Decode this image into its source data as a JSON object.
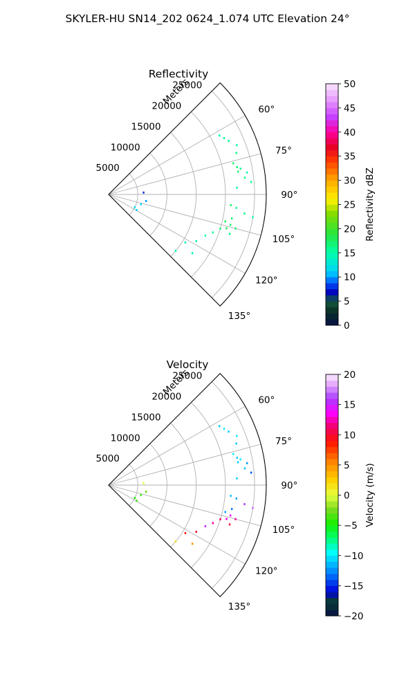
{
  "figure": {
    "title": "SKYLER-HU  SN14_202  0624_1.074 UTC Elevation 24°"
  },
  "chart_data": [
    {
      "type": "scatter",
      "subtype": "polar-sector (radar PPI)",
      "title": "Reflectivity",
      "range_label": "Meters",
      "range_ticks": [
        5000,
        10000,
        15000,
        20000,
        25000
      ],
      "range_tick_labels": [
        "5000",
        "10000",
        "15000",
        "20000",
        "25000"
      ],
      "rlim": [
        0,
        27000
      ],
      "azimuth_range_deg": [
        45,
        135
      ],
      "azimuth_ticks_deg": [
        60,
        75,
        90,
        105,
        120,
        135
      ],
      "azimuth_tick_labels": [
        "60°",
        "75°",
        "90°",
        "105°",
        "120°",
        "135°"
      ],
      "grid": true,
      "colorbar": {
        "label": "Reflectivity dBZ",
        "min": 0,
        "max": 50,
        "ticks": [
          0,
          5,
          10,
          15,
          20,
          25,
          30,
          35,
          40,
          45,
          50
        ],
        "tick_labels": [
          "0",
          "5",
          "10",
          "15",
          "20",
          "25",
          "30",
          "35",
          "40",
          "45",
          "50"
        ],
        "colormap": "pyart_NWSRef-like"
      },
      "points": [
        {
          "az": 62,
          "r": 21500,
          "v": 15
        },
        {
          "az": 64,
          "r": 22000,
          "v": 16
        },
        {
          "az": 66,
          "r": 22500,
          "v": 16
        },
        {
          "az": 69,
          "r": 23500,
          "v": 15
        },
        {
          "az": 72,
          "r": 23000,
          "v": 16
        },
        {
          "az": 76,
          "r": 22000,
          "v": 17
        },
        {
          "az": 78,
          "r": 22500,
          "v": 17
        },
        {
          "az": 79,
          "r": 23000,
          "v": 16
        },
        {
          "az": 80,
          "r": 22500,
          "v": 17
        },
        {
          "az": 81,
          "r": 24000,
          "v": 15
        },
        {
          "az": 83,
          "r": 23500,
          "v": 16
        },
        {
          "az": 85,
          "r": 24500,
          "v": 16
        },
        {
          "az": 87,
          "r": 22000,
          "v": 15
        },
        {
          "az": 95,
          "r": 21000,
          "v": 17
        },
        {
          "az": 96,
          "r": 22000,
          "v": 16
        },
        {
          "az": 98,
          "r": 23500,
          "v": 16
        },
        {
          "az": 99,
          "r": 25000,
          "v": 15
        },
        {
          "az": 101,
          "r": 21500,
          "v": 17
        },
        {
          "az": 103,
          "r": 20500,
          "v": 18
        },
        {
          "az": 104,
          "r": 21500,
          "v": 17
        },
        {
          "az": 105,
          "r": 22500,
          "v": 17
        },
        {
          "az": 106,
          "r": 21000,
          "v": 18
        },
        {
          "az": 107,
          "r": 20000,
          "v": 17
        },
        {
          "az": 108,
          "r": 21800,
          "v": 16
        },
        {
          "az": 110,
          "r": 19000,
          "v": 16
        },
        {
          "az": 113,
          "r": 18000,
          "v": 15
        },
        {
          "az": 118,
          "r": 17000,
          "v": 15
        },
        {
          "az": 122,
          "r": 15500,
          "v": 14
        },
        {
          "az": 125,
          "r": 17500,
          "v": 14
        },
        {
          "az": 130,
          "r": 15000,
          "v": 15
        },
        {
          "az": 87,
          "r": 6000,
          "v": 8
        },
        {
          "az": 100,
          "r": 6500,
          "v": 10
        },
        {
          "az": 107,
          "r": 5800,
          "v": 11
        },
        {
          "az": 116,
          "r": 5000,
          "v": 12
        },
        {
          "az": 119,
          "r": 5500,
          "v": 11
        }
      ]
    },
    {
      "type": "scatter",
      "subtype": "polar-sector (radar PPI)",
      "title": "Velocity",
      "range_label": "Meters",
      "range_ticks": [
        5000,
        10000,
        15000,
        20000,
        25000
      ],
      "range_tick_labels": [
        "5000",
        "10000",
        "15000",
        "20000",
        "25000"
      ],
      "rlim": [
        0,
        27000
      ],
      "azimuth_range_deg": [
        45,
        135
      ],
      "azimuth_ticks_deg": [
        60,
        75,
        90,
        105,
        120,
        135
      ],
      "azimuth_tick_labels": [
        "60°",
        "75°",
        "90°",
        "105°",
        "120°",
        "135°"
      ],
      "grid": true,
      "colorbar": {
        "label": "Velocity (m/s)",
        "min": -20,
        "max": 20,
        "ticks": [
          -20,
          -15,
          -10,
          -5,
          0,
          5,
          10,
          15,
          20
        ],
        "tick_labels": [
          "−20",
          "−15",
          "−10",
          "−5",
          "0",
          "5",
          "10",
          "15",
          "20"
        ],
        "colormap": "pyart_BuDRd18-like"
      },
      "points": [
        {
          "az": 62,
          "r": 21500,
          "v": -11
        },
        {
          "az": 64,
          "r": 22000,
          "v": -10
        },
        {
          "az": 66,
          "r": 22500,
          "v": -11
        },
        {
          "az": 69,
          "r": 23500,
          "v": -10
        },
        {
          "az": 72,
          "r": 23000,
          "v": -11
        },
        {
          "az": 76,
          "r": 22000,
          "v": -10
        },
        {
          "az": 78,
          "r": 22500,
          "v": -11
        },
        {
          "az": 79,
          "r": 23000,
          "v": -10
        },
        {
          "az": 80,
          "r": 22500,
          "v": -11
        },
        {
          "az": 81,
          "r": 24000,
          "v": -12
        },
        {
          "az": 83,
          "r": 23500,
          "v": -11
        },
        {
          "az": 85,
          "r": 24500,
          "v": -14
        },
        {
          "az": 87,
          "r": 22000,
          "v": -11
        },
        {
          "az": 95,
          "r": 21000,
          "v": -11
        },
        {
          "az": 96,
          "r": 22000,
          "v": -12
        },
        {
          "az": 98,
          "r": 23500,
          "v": 16
        },
        {
          "az": 99,
          "r": 25000,
          "v": 17
        },
        {
          "az": 101,
          "r": 21500,
          "v": -13
        },
        {
          "az": 103,
          "r": 20500,
          "v": -12
        },
        {
          "az": 104,
          "r": 21500,
          "v": 14
        },
        {
          "az": 105,
          "r": 22500,
          "v": 12
        },
        {
          "az": 106,
          "r": 21000,
          "v": 13
        },
        {
          "az": 107,
          "r": 20000,
          "v": 11
        },
        {
          "az": 108,
          "r": 21800,
          "v": 10
        },
        {
          "az": 110,
          "r": 19000,
          "v": 12
        },
        {
          "az": 113,
          "r": 18000,
          "v": 15
        },
        {
          "az": 118,
          "r": 17000,
          "v": 10
        },
        {
          "az": 122,
          "r": 15500,
          "v": 9
        },
        {
          "az": 125,
          "r": 17500,
          "v": 5
        },
        {
          "az": 130,
          "r": 15000,
          "v": 2
        },
        {
          "az": 87,
          "r": 6000,
          "v": 0
        },
        {
          "az": 100,
          "r": 6500,
          "v": -3
        },
        {
          "az": 107,
          "r": 5800,
          "v": -4
        },
        {
          "az": 116,
          "r": 5000,
          "v": -5
        },
        {
          "az": 119,
          "r": 5500,
          "v": -4
        }
      ]
    }
  ]
}
